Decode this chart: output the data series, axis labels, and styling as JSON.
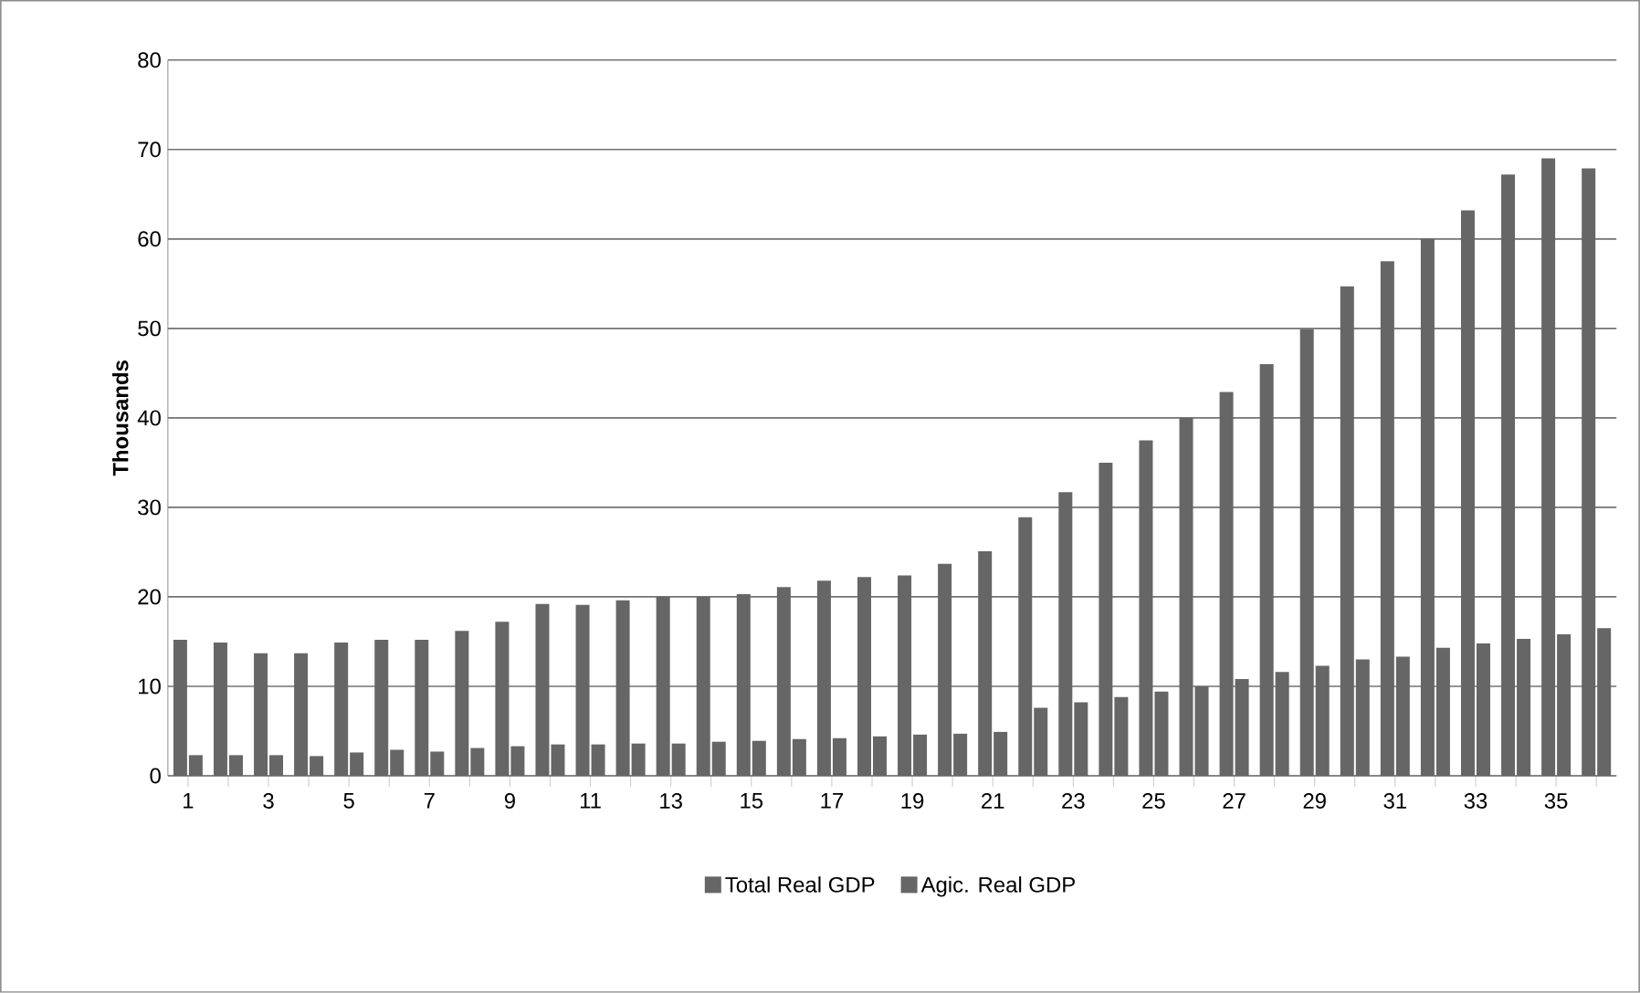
{
  "chart_data": {
    "type": "bar",
    "ylabel": "Thousands",
    "categories": [
      "1",
      null,
      "3",
      null,
      "5",
      null,
      "7",
      null,
      "9",
      null,
      "11",
      null,
      "13",
      null,
      "15",
      null,
      "17",
      null,
      "19",
      null,
      "21",
      null,
      "23",
      null,
      "25",
      null,
      "27",
      null,
      "29",
      null,
      "31",
      null,
      "33",
      null,
      "35",
      null
    ],
    "series": [
      {
        "name": "Total  Real GDP",
        "color": "#666666",
        "values": [
          15.2,
          14.9,
          13.7,
          13.7,
          14.9,
          15.2,
          15.2,
          16.2,
          17.2,
          19.2,
          19.1,
          19.6,
          20.0,
          20.0,
          20.3,
          21.1,
          21.8,
          22.2,
          22.4,
          23.7,
          25.1,
          28.9,
          31.7,
          35.0,
          37.5,
          40.0,
          42.9,
          46.0,
          49.9,
          54.7,
          57.5,
          60.0,
          63.2,
          67.2,
          69.0,
          67.9
        ]
      },
      {
        "name": "Agic.  Real GDP",
        "color": "#666666",
        "values": [
          2.3,
          2.3,
          2.3,
          2.2,
          2.6,
          2.9,
          2.7,
          3.1,
          3.3,
          3.5,
          3.5,
          3.6,
          3.6,
          3.8,
          3.9,
          4.1,
          4.2,
          4.4,
          4.6,
          4.7,
          4.9,
          7.6,
          8.2,
          8.8,
          9.4,
          10.0,
          10.8,
          11.6,
          12.3,
          13.0,
          13.3,
          14.3,
          14.8,
          15.3,
          15.8,
          16.5
        ]
      }
    ],
    "ylim": [
      0,
      80
    ],
    "yticks": [
      0,
      10,
      20,
      30,
      40,
      50,
      60,
      70,
      80
    ],
    "grid": "y",
    "legend": "bottom"
  }
}
